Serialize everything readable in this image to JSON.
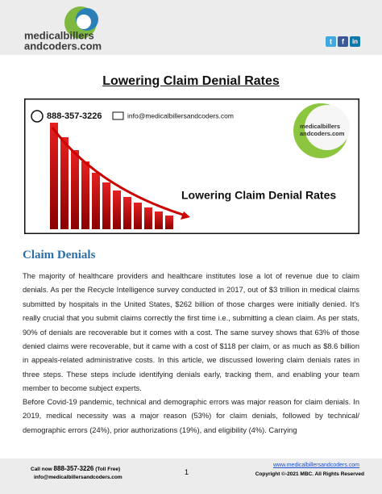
{
  "header": {
    "logo_line1": "medicalbillers",
    "logo_line2": "andcoders.com",
    "social": [
      "t",
      "f",
      "in"
    ]
  },
  "title": "Lowering Claim Denial Rates",
  "banner": {
    "phone": "888-357-3226",
    "email": "info@medicalbillersandcoders.com",
    "logo_line1": "medicalbillers",
    "logo_line2": "andcoders.com",
    "title": "Lowering Claim Denial Rates"
  },
  "section": {
    "heading": "Claim Denials",
    "paragraphs": [
      "The majority of healthcare providers and healthcare institutes lose a lot of revenue due to claim denials. As per the Recycle Intelligence survey conducted in 2017, out of $3 trillion in medical claims submitted by hospitals in the United States, $262 billion of those charges were initially denied. It's really crucial that you submit claims correctly the first time i.e., submitting a clean claim. As per stats, 90% of denials are recoverable but it comes with a cost. The same survey shows that 63% of those denied claims were recoverable, but it came with a cost of $118 per claim, or as much as $8.6 billion in appeals-related administrative costs. In this article, we discussed lowering claim denials rates in three steps. These steps include identifying denials early, tracking them, and enabling your team member to become subject experts.",
      "Before Covid-19 pandemic, technical and demographic errors was major reason for claim denials. In 2019, medical necessity was a major reason (53%) for claim denials, followed by technical/ demographic errors (24%), prior authorizations (19%), and eligibility (4%). Carrying"
    ]
  },
  "footer": {
    "call_label": "Call now",
    "phone": "888-357-3226",
    "toll_free": "(Toll Free)",
    "email": "info@medicalbillersandcoders.com",
    "page": "1",
    "website": "www.medicalbillersandcoders.com",
    "copyright": "Copyright ©-2021 MBC. All Rights Reserved"
  }
}
